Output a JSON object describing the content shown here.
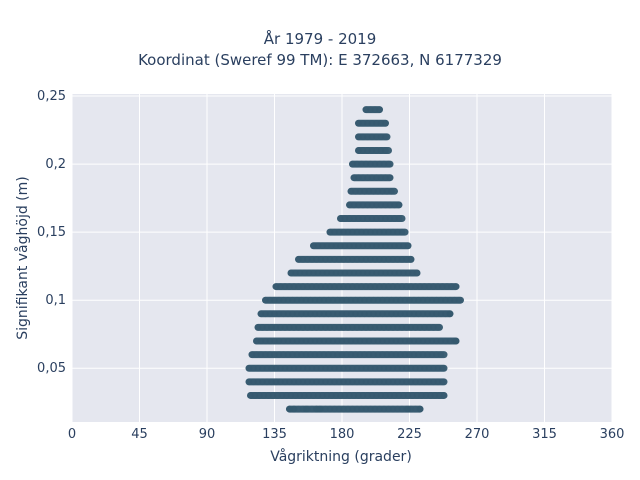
{
  "chart_data": {
    "type": "scatter",
    "title_lines": [
      "År 1979 - 2019",
      "Koordinat (Sweref 99 TM): E 372663, N 6177329"
    ],
    "xlabel": "Vågriktning (grader)",
    "ylabel": "Signifikant våghöjd (m)",
    "xlim": [
      0,
      360
    ],
    "ylim": [
      0.0105,
      0.2515
    ],
    "x_ticks": [
      0,
      45,
      90,
      135,
      180,
      225,
      270,
      315,
      360
    ],
    "x_tick_labels": [
      "0",
      "45",
      "90",
      "135",
      "180",
      "225",
      "270",
      "315",
      "360"
    ],
    "y_ticks": [
      0.05,
      0.1,
      0.15,
      0.2,
      0.25
    ],
    "y_tick_labels": [
      "0,05",
      "0,1",
      "0,15",
      "0,2",
      "0,25"
    ],
    "grid": true,
    "marker_color": "#34586e",
    "background_color": "#e5e7ef",
    "bands": [
      {
        "y": 0.02,
        "x_min": 145,
        "x_max": 232
      },
      {
        "y": 0.03,
        "x_min": 119,
        "x_max": 248
      },
      {
        "y": 0.04,
        "x_min": 118,
        "x_max": 248
      },
      {
        "y": 0.05,
        "x_min": 118,
        "x_max": 248
      },
      {
        "y": 0.06,
        "x_min": 120,
        "x_max": 248
      },
      {
        "y": 0.07,
        "x_min": 123,
        "x_max": 256
      },
      {
        "y": 0.08,
        "x_min": 124,
        "x_max": 245
      },
      {
        "y": 0.09,
        "x_min": 126,
        "x_max": 252
      },
      {
        "y": 0.1,
        "x_min": 129,
        "x_max": 259
      },
      {
        "y": 0.11,
        "x_min": 136,
        "x_max": 256
      },
      {
        "y": 0.12,
        "x_min": 146,
        "x_max": 230
      },
      {
        "y": 0.13,
        "x_min": 151,
        "x_max": 226
      },
      {
        "y": 0.14,
        "x_min": 161,
        "x_max": 224
      },
      {
        "y": 0.15,
        "x_min": 172,
        "x_max": 222
      },
      {
        "y": 0.16,
        "x_min": 179,
        "x_max": 220
      },
      {
        "y": 0.17,
        "x_min": 185,
        "x_max": 218
      },
      {
        "y": 0.18,
        "x_min": 186,
        "x_max": 215
      },
      {
        "y": 0.19,
        "x_min": 188,
        "x_max": 212
      },
      {
        "y": 0.2,
        "x_min": 187,
        "x_max": 212
      },
      {
        "y": 0.21,
        "x_min": 191,
        "x_max": 211
      },
      {
        "y": 0.22,
        "x_min": 191,
        "x_max": 210
      },
      {
        "y": 0.23,
        "x_min": 191,
        "x_max": 209
      },
      {
        "y": 0.24,
        "x_min": 196,
        "x_max": 205
      }
    ],
    "outliers": [
      {
        "x": 145,
        "y": 0.02
      },
      {
        "x": 148,
        "y": 0.02
      },
      {
        "x": 156,
        "y": 0.02
      },
      {
        "x": 163,
        "y": 0.02
      },
      {
        "x": 165,
        "y": 0.02
      },
      {
        "x": 224,
        "y": 0.02
      },
      {
        "x": 232,
        "y": 0.02
      },
      {
        "x": 256,
        "y": 0.07
      },
      {
        "x": 252,
        "y": 0.09
      }
    ]
  }
}
